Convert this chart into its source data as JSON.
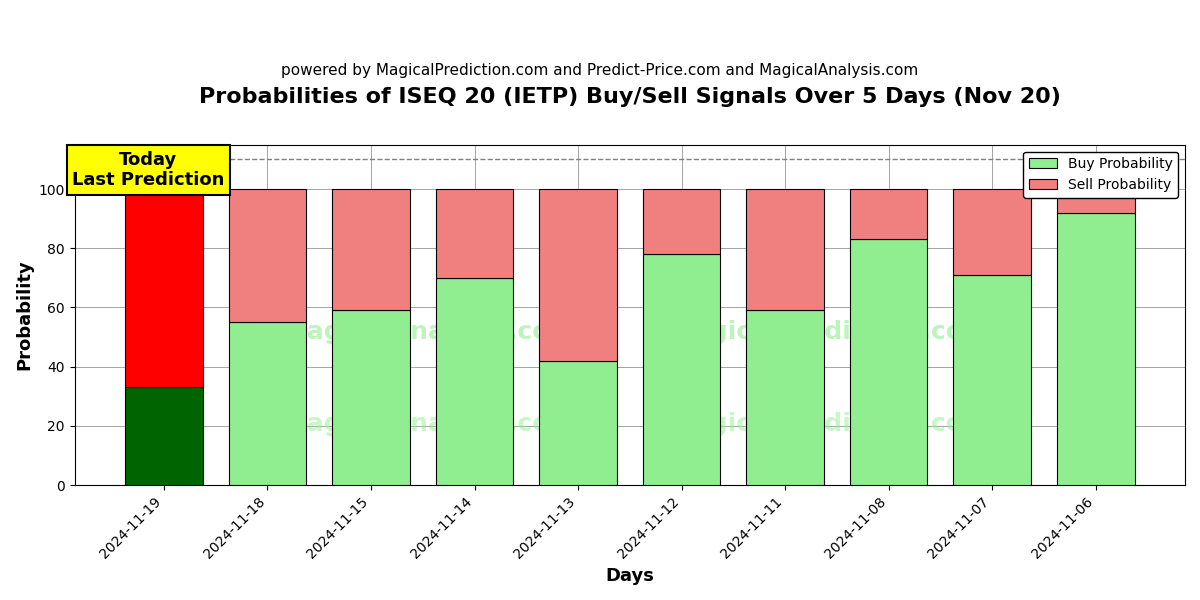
{
  "title": "Probabilities of ISEQ 20 (IETP) Buy/Sell Signals Over 5 Days (Nov 20)",
  "subtitle": "powered by MagicalPrediction.com and Predict-Price.com and MagicalAnalysis.com",
  "xlabel": "Days",
  "ylabel": "Probability",
  "dates": [
    "2024-11-19",
    "2024-11-18",
    "2024-11-15",
    "2024-11-14",
    "2024-11-13",
    "2024-11-12",
    "2024-11-11",
    "2024-11-08",
    "2024-11-07",
    "2024-11-06"
  ],
  "buy_probs": [
    33,
    55,
    59,
    70,
    42,
    78,
    59,
    83,
    71,
    92
  ],
  "sell_probs": [
    67,
    45,
    41,
    30,
    58,
    22,
    41,
    17,
    29,
    8
  ],
  "buy_colors": [
    "#006400",
    "#90EE90",
    "#90EE90",
    "#90EE90",
    "#90EE90",
    "#90EE90",
    "#90EE90",
    "#90EE90",
    "#90EE90",
    "#90EE90"
  ],
  "sell_colors": [
    "#FF0000",
    "#F08080",
    "#F08080",
    "#F08080",
    "#F08080",
    "#F08080",
    "#F08080",
    "#F08080",
    "#F08080",
    "#F08080"
  ],
  "today_annotation": "Today\nLast Prediction",
  "dashed_line_y": 110,
  "ylim": [
    0,
    115
  ],
  "yticks": [
    0,
    20,
    40,
    60,
    80,
    100
  ],
  "legend_buy_color": "#90EE90",
  "legend_sell_color": "#F08080",
  "bar_edge_color": "black",
  "bar_linewidth": 0.8,
  "background_color": "#ffffff",
  "grid_color": "gray",
  "title_fontsize": 16,
  "subtitle_fontsize": 11,
  "annotation_box_color": "yellow",
  "annotation_fontsize": 13,
  "bar_width": 0.75
}
